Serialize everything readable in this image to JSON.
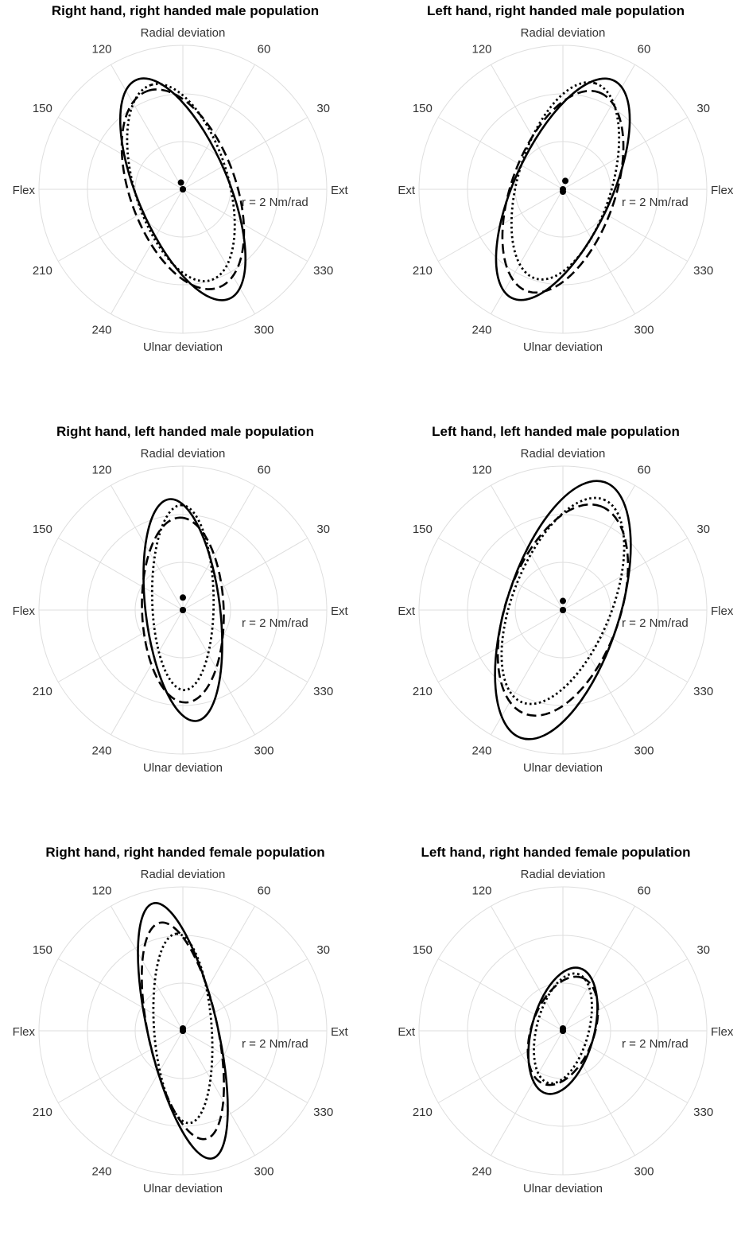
{
  "chart_data": [
    {
      "type": "polar",
      "title": "Right hand, right handed male population",
      "angular_labels": {
        "0": "Ext",
        "30": "30",
        "60": "60",
        "90": "Radial deviation",
        "120": "120",
        "150": "150",
        "180": "Flex",
        "210": "210",
        "240": "240",
        "270": "Ulnar deviation",
        "300": "300",
        "330": "330"
      },
      "radius_label": "r = 2 Nm/rad",
      "series": [
        {
          "style": "solid",
          "a": 4.95,
          "b": 1.9,
          "angle": 113,
          "center": [
            0.0,
            0.0
          ]
        },
        {
          "style": "dashed",
          "a": 4.35,
          "b": 2.2,
          "angle": 110,
          "center": [
            0.0,
            0.0
          ]
        },
        {
          "style": "dotted",
          "a": 4.25,
          "b": 1.95,
          "angle": 107,
          "center": [
            -0.08,
            0.28
          ]
        }
      ]
    },
    {
      "type": "polar",
      "title": "Left hand, right handed male population",
      "angular_labels": {
        "0": "Flex",
        "30": "30",
        "60": "60",
        "90": "Radial deviation",
        "120": "120",
        "150": "150",
        "180": "Ext",
        "210": "210",
        "240": "240",
        "270": "Ulnar deviation",
        "300": "300",
        "330": "330"
      },
      "radius_label": "r = 2 Nm/rad",
      "series": [
        {
          "style": "solid",
          "a": 5.0,
          "b": 2.0,
          "angle": 65,
          "center": [
            0.0,
            0.0
          ]
        },
        {
          "style": "dashed",
          "a": 4.4,
          "b": 2.15,
          "angle": 70,
          "center": [
            0.0,
            -0.1
          ]
        },
        {
          "style": "dotted",
          "a": 4.25,
          "b": 1.95,
          "angle": 73,
          "center": [
            0.1,
            0.35
          ]
        }
      ]
    },
    {
      "type": "polar",
      "title": "Right hand, left handed male population",
      "angular_labels": {
        "0": "Ext",
        "30": "30",
        "60": "60",
        "90": "Radial deviation",
        "120": "120",
        "150": "150",
        "180": "Flex",
        "210": "210",
        "240": "240",
        "270": "Ulnar deviation",
        "300": "300",
        "330": "330"
      },
      "radius_label": "r = 2 Nm/rad",
      "series": [
        {
          "style": "solid",
          "a": 4.65,
          "b": 1.55,
          "angle": 97,
          "center": [
            0.0,
            0.0
          ]
        },
        {
          "style": "dashed",
          "a": 3.85,
          "b": 1.7,
          "angle": 92,
          "center": [
            0.0,
            0.0
          ]
        },
        {
          "style": "dotted",
          "a": 3.85,
          "b": 1.28,
          "angle": 91,
          "center": [
            0.0,
            0.52
          ]
        }
      ]
    },
    {
      "type": "polar",
      "title": "Left hand, left handed male population",
      "angular_labels": {
        "0": "Flex",
        "30": "30",
        "60": "60",
        "90": "Radial deviation",
        "120": "120",
        "150": "150",
        "180": "Ext",
        "210": "210",
        "240": "240",
        "270": "Ulnar deviation",
        "300": "300",
        "330": "330"
      },
      "radius_label": "r = 2 Nm/rad",
      "series": [
        {
          "style": "solid",
          "a": 5.6,
          "b": 2.35,
          "angle": 72,
          "center": [
            0.0,
            0.0
          ]
        },
        {
          "style": "dashed",
          "a": 4.6,
          "b": 2.35,
          "angle": 70,
          "center": [
            0.0,
            0.0
          ]
        },
        {
          "style": "dotted",
          "a": 4.55,
          "b": 2.05,
          "angle": 68,
          "center": [
            0.0,
            0.38
          ]
        }
      ]
    },
    {
      "type": "polar",
      "title": "Right hand, right handed female population",
      "angular_labels": {
        "0": "Ext",
        "30": "30",
        "60": "60",
        "90": "Radial deviation",
        "120": "120",
        "150": "150",
        "180": "Flex",
        "210": "210",
        "240": "240",
        "270": "Ulnar deviation",
        "300": "300",
        "330": "330"
      },
      "radius_label": "r = 2 Nm/rad",
      "series": [
        {
          "style": "solid",
          "a": 5.45,
          "b": 1.45,
          "angle": 103,
          "center": [
            0.0,
            0.0
          ]
        },
        {
          "style": "dashed",
          "a": 4.6,
          "b": 1.45,
          "angle": 102,
          "center": [
            0.0,
            0.0
          ]
        },
        {
          "style": "dotted",
          "a": 3.95,
          "b": 1.2,
          "angle": 94,
          "center": [
            0.0,
            0.1
          ]
        }
      ]
    },
    {
      "type": "polar",
      "title": "Left hand, right handed female population",
      "angular_labels": {
        "0": "Flex",
        "30": "30",
        "60": "60",
        "90": "Radial deviation",
        "120": "120",
        "150": "150",
        "180": "Ext",
        "210": "210",
        "240": "240",
        "270": "Ulnar deviation",
        "300": "300",
        "330": "330"
      },
      "radius_label": "r = 2 Nm/rad",
      "series": [
        {
          "style": "solid",
          "a": 2.7,
          "b": 1.3,
          "angle": 75,
          "center": [
            0.0,
            0.0
          ]
        },
        {
          "style": "dashed",
          "a": 2.35,
          "b": 1.3,
          "angle": 70,
          "center": [
            0.0,
            0.0
          ]
        },
        {
          "style": "dotted",
          "a": 2.35,
          "b": 1.08,
          "angle": 75,
          "center": [
            0.0,
            0.1
          ]
        }
      ]
    }
  ]
}
